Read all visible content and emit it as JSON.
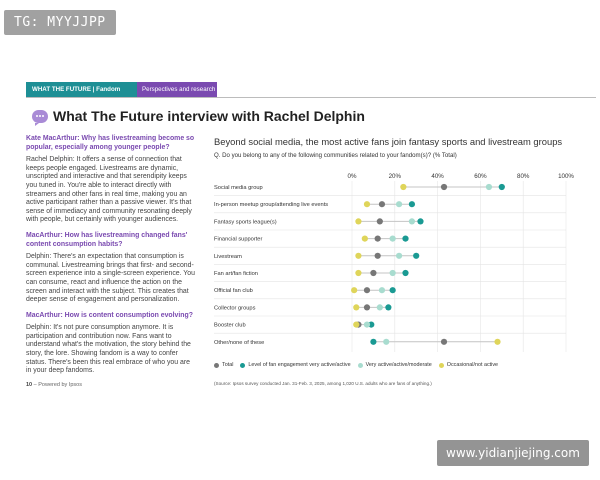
{
  "watermark_top": "TG: MYYJJPP",
  "watermark_bottom": "www.yidianjiejing.com",
  "header": {
    "section_label": "WHAT THE FUTURE | Fandom",
    "tag_label": "Perspectives and research"
  },
  "page_title": "What The Future interview with Rachel Delphin",
  "interview": [
    {
      "type": "q",
      "text": "Kate MacArthur: Why has livestreaming become so popular, especially among younger people?"
    },
    {
      "type": "p",
      "text": "Rachel Delphin: It offers a sense of connection that keeps people engaged. Livestreams are dynamic, unscripted and interactive and that serendipity keeps you tuned in. You're able to interact directly with streamers and other fans in real time, making you an active participant rather than a passive viewer. It's that sense of immediacy and community resonating deeply with people, but certainly with younger audiences."
    },
    {
      "type": "q",
      "text": "MacArthur: How has livestreaming changed fans' content consumption habits?"
    },
    {
      "type": "p",
      "text": "Delphin: There's an expectation that consumption is communal. Livestreaming brings that first- and second-screen experience into a single-screen experience. You can consume, react and influence the action on the screen and interact with the subject. This creates that deeper sense of engagement and personalization."
    },
    {
      "type": "q",
      "text": "MacArthur: How is content consumption evolving?"
    },
    {
      "type": "p",
      "text": "Delphin: It's not pure consumption anymore. It is participation and contribution now. Fans want to understand what's the motivation, the story behind the story, the lore. Showing fandom is a way to confer status. There's been this real embrace of who you are in your deep fandoms."
    }
  ],
  "footer": {
    "page": "10",
    "powered": "Powered by Ipsos"
  },
  "colors": {
    "total": "#777777",
    "very_active": "#1a9a93",
    "active": "#a8dccf",
    "occasional": "#dfd55a",
    "band_teal": "#1e8f95",
    "band_purple": "#7a4ab0"
  },
  "chart_data": {
    "type": "dot",
    "title": "Beyond social media, the most active fans join fantasy sports and livestream groups",
    "question": "Q. Do you belong to any of the following communities related to your fandom(s)? (% Total)",
    "xlim": [
      0,
      100
    ],
    "x_ticks": [
      "0%",
      "20%",
      "40%",
      "60%",
      "80%",
      "100%"
    ],
    "categories": [
      "Social media group",
      "In-person meetup group/attending live events",
      "Fantasy sports league(s)",
      "Financial supporter",
      "Livestream",
      "Fan art/fan fiction",
      "Official fan club",
      "Collector groups",
      "Booster club",
      "Other/none of these"
    ],
    "series": [
      {
        "name": "Total",
        "key": "total",
        "values": [
          43,
          14,
          13,
          12,
          12,
          10,
          7,
          7,
          3,
          43
        ]
      },
      {
        "name": "Level of fan engagement very active/active",
        "key": "very_active",
        "values": [
          70,
          28,
          32,
          25,
          30,
          25,
          19,
          17,
          9,
          10
        ]
      },
      {
        "name": "Very active/active/moderate",
        "key": "active",
        "values": [
          64,
          22,
          28,
          19,
          22,
          19,
          14,
          13,
          7,
          16
        ]
      },
      {
        "name": "Occasional/not active",
        "key": "occasional",
        "values": [
          24,
          7,
          3,
          6,
          3,
          3,
          1,
          2,
          2,
          68
        ]
      }
    ],
    "source": "(Source: Ipsos survey conducted Jan. 31-Feb. 3, 2025, among 1,020 U.S. adults who are fans of anything.)"
  }
}
